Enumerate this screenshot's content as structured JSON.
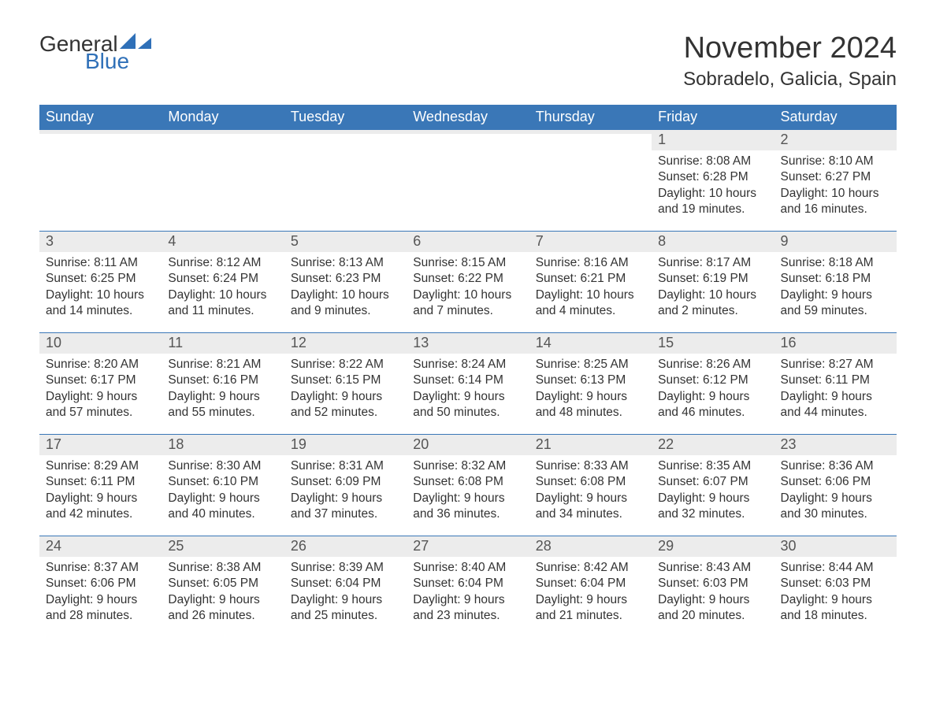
{
  "logo": {
    "word1": "General",
    "word2": "Blue",
    "word1_color": "#333333",
    "word2_color": "#2f70b8",
    "sail_color": "#2f70b8",
    "font_size": 28
  },
  "title": {
    "month": "November 2024",
    "location": "Sobradelo, Galicia, Spain",
    "month_fontsize": 38,
    "location_fontsize": 24,
    "text_color": "#333333"
  },
  "colors": {
    "header_bg": "#3a77b7",
    "header_text": "#ffffff",
    "daynum_bg": "#ececec",
    "daynum_text": "#555555",
    "body_text": "#333333",
    "week_border": "#3a77b7",
    "page_bg": "#ffffff"
  },
  "weekdays": [
    "Sunday",
    "Monday",
    "Tuesday",
    "Wednesday",
    "Thursday",
    "Friday",
    "Saturday"
  ],
  "weeks": [
    [
      {
        "empty": true
      },
      {
        "empty": true
      },
      {
        "empty": true
      },
      {
        "empty": true
      },
      {
        "empty": true
      },
      {
        "day": "1",
        "sunrise": "Sunrise: 8:08 AM",
        "sunset": "Sunset: 6:28 PM",
        "daylight1": "Daylight: 10 hours",
        "daylight2": "and 19 minutes."
      },
      {
        "day": "2",
        "sunrise": "Sunrise: 8:10 AM",
        "sunset": "Sunset: 6:27 PM",
        "daylight1": "Daylight: 10 hours",
        "daylight2": "and 16 minutes."
      }
    ],
    [
      {
        "day": "3",
        "sunrise": "Sunrise: 8:11 AM",
        "sunset": "Sunset: 6:25 PM",
        "daylight1": "Daylight: 10 hours",
        "daylight2": "and 14 minutes."
      },
      {
        "day": "4",
        "sunrise": "Sunrise: 8:12 AM",
        "sunset": "Sunset: 6:24 PM",
        "daylight1": "Daylight: 10 hours",
        "daylight2": "and 11 minutes."
      },
      {
        "day": "5",
        "sunrise": "Sunrise: 8:13 AM",
        "sunset": "Sunset: 6:23 PM",
        "daylight1": "Daylight: 10 hours",
        "daylight2": "and 9 minutes."
      },
      {
        "day": "6",
        "sunrise": "Sunrise: 8:15 AM",
        "sunset": "Sunset: 6:22 PM",
        "daylight1": "Daylight: 10 hours",
        "daylight2": "and 7 minutes."
      },
      {
        "day": "7",
        "sunrise": "Sunrise: 8:16 AM",
        "sunset": "Sunset: 6:21 PM",
        "daylight1": "Daylight: 10 hours",
        "daylight2": "and 4 minutes."
      },
      {
        "day": "8",
        "sunrise": "Sunrise: 8:17 AM",
        "sunset": "Sunset: 6:19 PM",
        "daylight1": "Daylight: 10 hours",
        "daylight2": "and 2 minutes."
      },
      {
        "day": "9",
        "sunrise": "Sunrise: 8:18 AM",
        "sunset": "Sunset: 6:18 PM",
        "daylight1": "Daylight: 9 hours",
        "daylight2": "and 59 minutes."
      }
    ],
    [
      {
        "day": "10",
        "sunrise": "Sunrise: 8:20 AM",
        "sunset": "Sunset: 6:17 PM",
        "daylight1": "Daylight: 9 hours",
        "daylight2": "and 57 minutes."
      },
      {
        "day": "11",
        "sunrise": "Sunrise: 8:21 AM",
        "sunset": "Sunset: 6:16 PM",
        "daylight1": "Daylight: 9 hours",
        "daylight2": "and 55 minutes."
      },
      {
        "day": "12",
        "sunrise": "Sunrise: 8:22 AM",
        "sunset": "Sunset: 6:15 PM",
        "daylight1": "Daylight: 9 hours",
        "daylight2": "and 52 minutes."
      },
      {
        "day": "13",
        "sunrise": "Sunrise: 8:24 AM",
        "sunset": "Sunset: 6:14 PM",
        "daylight1": "Daylight: 9 hours",
        "daylight2": "and 50 minutes."
      },
      {
        "day": "14",
        "sunrise": "Sunrise: 8:25 AM",
        "sunset": "Sunset: 6:13 PM",
        "daylight1": "Daylight: 9 hours",
        "daylight2": "and 48 minutes."
      },
      {
        "day": "15",
        "sunrise": "Sunrise: 8:26 AM",
        "sunset": "Sunset: 6:12 PM",
        "daylight1": "Daylight: 9 hours",
        "daylight2": "and 46 minutes."
      },
      {
        "day": "16",
        "sunrise": "Sunrise: 8:27 AM",
        "sunset": "Sunset: 6:11 PM",
        "daylight1": "Daylight: 9 hours",
        "daylight2": "and 44 minutes."
      }
    ],
    [
      {
        "day": "17",
        "sunrise": "Sunrise: 8:29 AM",
        "sunset": "Sunset: 6:11 PM",
        "daylight1": "Daylight: 9 hours",
        "daylight2": "and 42 minutes."
      },
      {
        "day": "18",
        "sunrise": "Sunrise: 8:30 AM",
        "sunset": "Sunset: 6:10 PM",
        "daylight1": "Daylight: 9 hours",
        "daylight2": "and 40 minutes."
      },
      {
        "day": "19",
        "sunrise": "Sunrise: 8:31 AM",
        "sunset": "Sunset: 6:09 PM",
        "daylight1": "Daylight: 9 hours",
        "daylight2": "and 37 minutes."
      },
      {
        "day": "20",
        "sunrise": "Sunrise: 8:32 AM",
        "sunset": "Sunset: 6:08 PM",
        "daylight1": "Daylight: 9 hours",
        "daylight2": "and 36 minutes."
      },
      {
        "day": "21",
        "sunrise": "Sunrise: 8:33 AM",
        "sunset": "Sunset: 6:08 PM",
        "daylight1": "Daylight: 9 hours",
        "daylight2": "and 34 minutes."
      },
      {
        "day": "22",
        "sunrise": "Sunrise: 8:35 AM",
        "sunset": "Sunset: 6:07 PM",
        "daylight1": "Daylight: 9 hours",
        "daylight2": "and 32 minutes."
      },
      {
        "day": "23",
        "sunrise": "Sunrise: 8:36 AM",
        "sunset": "Sunset: 6:06 PM",
        "daylight1": "Daylight: 9 hours",
        "daylight2": "and 30 minutes."
      }
    ],
    [
      {
        "day": "24",
        "sunrise": "Sunrise: 8:37 AM",
        "sunset": "Sunset: 6:06 PM",
        "daylight1": "Daylight: 9 hours",
        "daylight2": "and 28 minutes."
      },
      {
        "day": "25",
        "sunrise": "Sunrise: 8:38 AM",
        "sunset": "Sunset: 6:05 PM",
        "daylight1": "Daylight: 9 hours",
        "daylight2": "and 26 minutes."
      },
      {
        "day": "26",
        "sunrise": "Sunrise: 8:39 AM",
        "sunset": "Sunset: 6:04 PM",
        "daylight1": "Daylight: 9 hours",
        "daylight2": "and 25 minutes."
      },
      {
        "day": "27",
        "sunrise": "Sunrise: 8:40 AM",
        "sunset": "Sunset: 6:04 PM",
        "daylight1": "Daylight: 9 hours",
        "daylight2": "and 23 minutes."
      },
      {
        "day": "28",
        "sunrise": "Sunrise: 8:42 AM",
        "sunset": "Sunset: 6:04 PM",
        "daylight1": "Daylight: 9 hours",
        "daylight2": "and 21 minutes."
      },
      {
        "day": "29",
        "sunrise": "Sunrise: 8:43 AM",
        "sunset": "Sunset: 6:03 PM",
        "daylight1": "Daylight: 9 hours",
        "daylight2": "and 20 minutes."
      },
      {
        "day": "30",
        "sunrise": "Sunrise: 8:44 AM",
        "sunset": "Sunset: 6:03 PM",
        "daylight1": "Daylight: 9 hours",
        "daylight2": "and 18 minutes."
      }
    ]
  ]
}
